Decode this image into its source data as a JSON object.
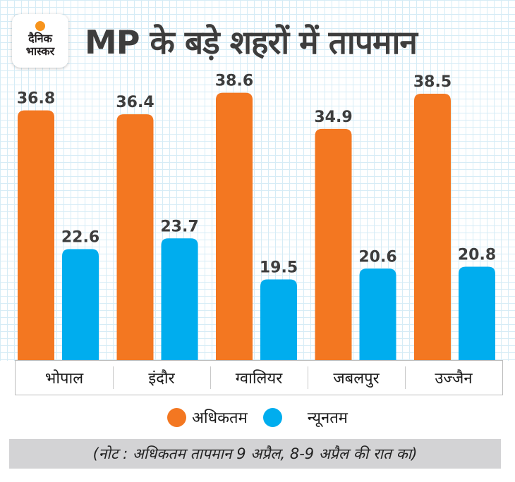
{
  "header": {
    "logo": {
      "line1": "दैनिक",
      "line2": "भास्कर",
      "icon": "sun-dot-icon"
    },
    "title": "MP के बड़े शहरों में तापमान"
  },
  "chart_data": {
    "type": "bar",
    "title": "MP के बड़े शहरों में तापमान",
    "xlabel": "",
    "ylabel": "",
    "categories": [
      "भोपाल",
      "इंदौर",
      "ग्वालियर",
      "जबलपुर",
      "उज्जैन"
    ],
    "series": [
      {
        "name": "अधिकतम",
        "color": "#f37721",
        "values": [
          36.8,
          36.4,
          38.6,
          34.9,
          38.5
        ]
      },
      {
        "name": "न्यूनतम",
        "color": "#00adee",
        "values": [
          22.6,
          23.7,
          19.5,
          20.6,
          20.8
        ]
      }
    ],
    "grid": true,
    "legend_position": "bottom-center",
    "value_labels": true
  },
  "legend": {
    "items": [
      {
        "label": "अधिकतम",
        "color": "#f37721"
      },
      {
        "label": "न्यूनतम",
        "color": "#00adee"
      }
    ]
  },
  "note": "(नोट : अधिकतम तापमान 9 अप्रैल, 8-9 अप्रैल की रात का)"
}
